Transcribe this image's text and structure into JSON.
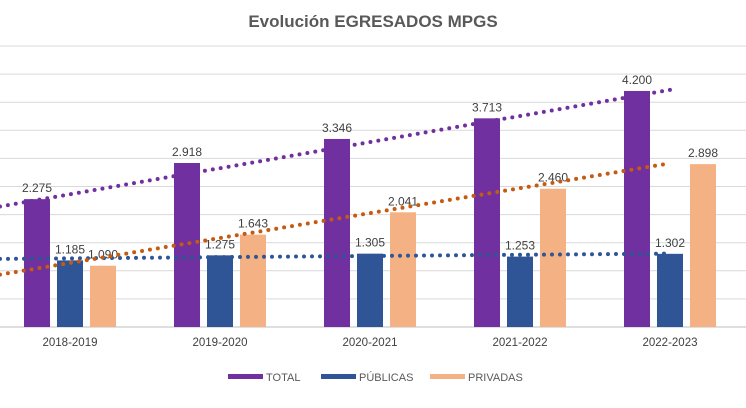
{
  "chart_data": {
    "type": "bar",
    "title": "Evolución EGRESADOS MPGS",
    "categories": [
      "2018-2019",
      "2019-2020",
      "2020-2021",
      "2021-2022",
      "2022-2023"
    ],
    "series": [
      {
        "name": "TOTAL",
        "color": "#7030A0",
        "values": [
          2275,
          2918,
          3346,
          3713,
          4200
        ],
        "labels": [
          "2.275",
          "2.918",
          "3.346",
          "3.713",
          "4.200"
        ]
      },
      {
        "name": "PÚBLICAS",
        "color": "#2F5597",
        "values": [
          1185,
          1275,
          1305,
          1253,
          1302
        ],
        "labels": [
          "1.185",
          "1.275",
          "1.305",
          "1.253",
          "1.302"
        ]
      },
      {
        "name": "PRIVADAS",
        "color": "#F4B183",
        "values": [
          1090,
          1643,
          2041,
          2460,
          2898
        ],
        "labels": [
          "1.090",
          "1.643",
          "2.041",
          "2.460",
          "2.898"
        ]
      }
    ],
    "trendlines": [
      {
        "series": "TOTAL",
        "type": "linear",
        "style": "dotted",
        "color": "#7030A0"
      },
      {
        "series": "PÚBLICAS",
        "type": "linear",
        "style": "dotted",
        "color": "#2F5597"
      },
      {
        "series": "PRIVADAS",
        "type": "linear",
        "style": "dotted",
        "color": "#C55A11"
      }
    ],
    "ylim": [
      0,
      5000
    ],
    "grid": true,
    "legend": "bottom",
    "xlabel": "",
    "ylabel": ""
  }
}
